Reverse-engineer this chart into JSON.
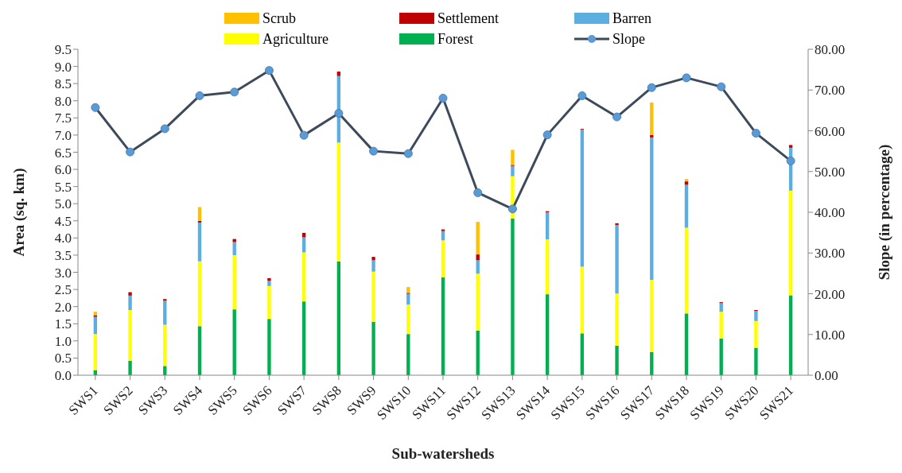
{
  "chart_data": {
    "type": "bar",
    "stacked": true,
    "xlabel": "Sub-watersheds",
    "ylabel": "Area (sq. km)",
    "y2label": "Slope (in percentage)",
    "categories": [
      "SWS1",
      "SWS2",
      "SWS3",
      "SWS4",
      "SWS5",
      "SWS6",
      "SWS7",
      "SWS8",
      "SWS9",
      "SWS10",
      "SWS11",
      "SWS12",
      "SWS13",
      "SWS14",
      "SWS15",
      "SWS16",
      "SWS17",
      "SWS18",
      "SWS19",
      "SWS20",
      "SWS21"
    ],
    "series": [
      {
        "name": "Forest",
        "color": "#00b050",
        "values": [
          0.15,
          0.42,
          0.27,
          1.43,
          1.92,
          1.64,
          2.15,
          3.32,
          1.56,
          1.2,
          2.85,
          1.3,
          4.57,
          2.36,
          1.22,
          0.86,
          0.68,
          1.8,
          1.07,
          0.8,
          2.33
        ]
      },
      {
        "name": "Agriculture",
        "color": "#ffff00",
        "values": [
          1.05,
          1.48,
          1.2,
          1.89,
          1.58,
          0.96,
          1.43,
          3.46,
          1.46,
          0.86,
          1.08,
          1.66,
          1.23,
          1.6,
          1.94,
          1.52,
          2.1,
          2.5,
          0.78,
          0.78,
          3.05
        ]
      },
      {
        "name": "Barren",
        "color": "#5aaee0",
        "values": [
          0.5,
          0.42,
          0.7,
          1.13,
          0.38,
          0.15,
          0.44,
          1.94,
          0.33,
          0.31,
          0.27,
          0.39,
          0.3,
          0.79,
          4.0,
          2.0,
          4.15,
          1.25,
          0.25,
          0.29,
          1.25
        ]
      },
      {
        "name": "Settlement",
        "color": "#c00000",
        "values": [
          0.05,
          0.1,
          0.05,
          0.05,
          0.09,
          0.08,
          0.13,
          0.13,
          0.1,
          0.03,
          0.05,
          0.17,
          0.03,
          0.03,
          0.02,
          0.05,
          0.07,
          0.1,
          0.03,
          0.03,
          0.08
        ]
      },
      {
        "name": "Scrub",
        "color": "#ffc000",
        "values": [
          0.1,
          0,
          0,
          0.4,
          0,
          0,
          0,
          0,
          0,
          0.17,
          0,
          0.95,
          0.44,
          0,
          0,
          0,
          0.95,
          0.07,
          0,
          0,
          0
        ]
      },
      {
        "name": "Slope",
        "type": "line",
        "axis": "y2",
        "color": "#3d4a5c",
        "marker": "circle",
        "values": [
          65.7,
          54.8,
          60.5,
          68.6,
          69.5,
          74.8,
          58.9,
          64.3,
          55.0,
          54.4,
          68.0,
          44.8,
          40.8,
          59.0,
          68.6,
          63.4,
          70.6,
          73.0,
          70.8,
          59.4,
          52.6
        ]
      }
    ],
    "ylim": [
      0,
      9.5
    ],
    "yticks": [
      {
        "value": 0,
        "label": "0.0"
      },
      {
        "value": 0.5,
        "label": "0.5"
      },
      {
        "value": 1,
        "label": "1.0"
      },
      {
        "value": 1.5,
        "label": "1.5"
      },
      {
        "value": 2,
        "label": "2.0"
      },
      {
        "value": 2.5,
        "label": "2.5"
      },
      {
        "value": 3,
        "label": "3.0"
      },
      {
        "value": 3.5,
        "label": "3.5"
      },
      {
        "value": 4,
        "label": "4.0"
      },
      {
        "value": 4.5,
        "label": "4.5"
      },
      {
        "value": 5,
        "label": "5.0"
      },
      {
        "value": 5.5,
        "label": "5.5"
      },
      {
        "value": 6,
        "label": "6.0"
      },
      {
        "value": 6.5,
        "label": "6.5"
      },
      {
        "value": 7,
        "label": "7.0"
      },
      {
        "value": 7.5,
        "label": "7.5"
      },
      {
        "value": 8,
        "label": "8.0"
      },
      {
        "value": 8.5,
        "label": "8.5"
      },
      {
        "value": 9,
        "label": "9.0"
      },
      {
        "value": 9.5,
        "label": "9.5"
      }
    ],
    "y2lim": [
      0,
      80
    ],
    "y2ticks": [
      {
        "value": 0,
        "label": "0.00"
      },
      {
        "value": 10,
        "label": "10.00"
      },
      {
        "value": 20,
        "label": "20.00"
      },
      {
        "value": 30,
        "label": "30.00"
      },
      {
        "value": 40,
        "label": "40.00"
      },
      {
        "value": 50,
        "label": "50.00"
      },
      {
        "value": 60,
        "label": "60.00"
      },
      {
        "value": 70,
        "label": "70.00"
      },
      {
        "value": 80,
        "label": "80.00"
      }
    ],
    "grid": false,
    "legend": "top"
  }
}
